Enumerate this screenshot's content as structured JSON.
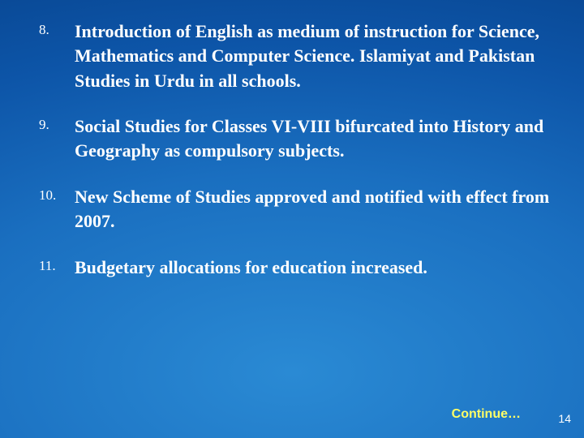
{
  "background": {
    "gradient_center": "#2a8ad4",
    "gradient_mid": "#1a6fc0",
    "gradient_outer": "#0d55a8",
    "gradient_edge": "#084590"
  },
  "typography": {
    "body_font": "Times New Roman",
    "body_fontsize_pt": 22,
    "body_fontweight": "bold",
    "number_fontsize_pt": 17,
    "number_fontweight": "normal",
    "text_color": "#ffffff",
    "continue_font": "Arial",
    "continue_fontsize_pt": 16,
    "continue_color": "#ffff66",
    "pagenum_font": "Arial",
    "pagenum_fontsize_pt": 14,
    "pagenum_color": "#ffffff"
  },
  "items": [
    {
      "num": "8.",
      "text": "Introduction of English as medium of instruction for Science, Mathematics and Computer Science. Islamiyat and Pakistan Studies in Urdu in all schools."
    },
    {
      "num": "9.",
      "text": "Social Studies for Classes VI-VIII bifurcated into History and Geography as compulsory subjects."
    },
    {
      "num": "10.",
      "text": " New Scheme of Studies approved and notified with effect from 2007."
    },
    {
      "num": "11.",
      "text": "Budgetary allocations for education increased."
    }
  ],
  "continue_label": "Continue…",
  "page_number": "14"
}
